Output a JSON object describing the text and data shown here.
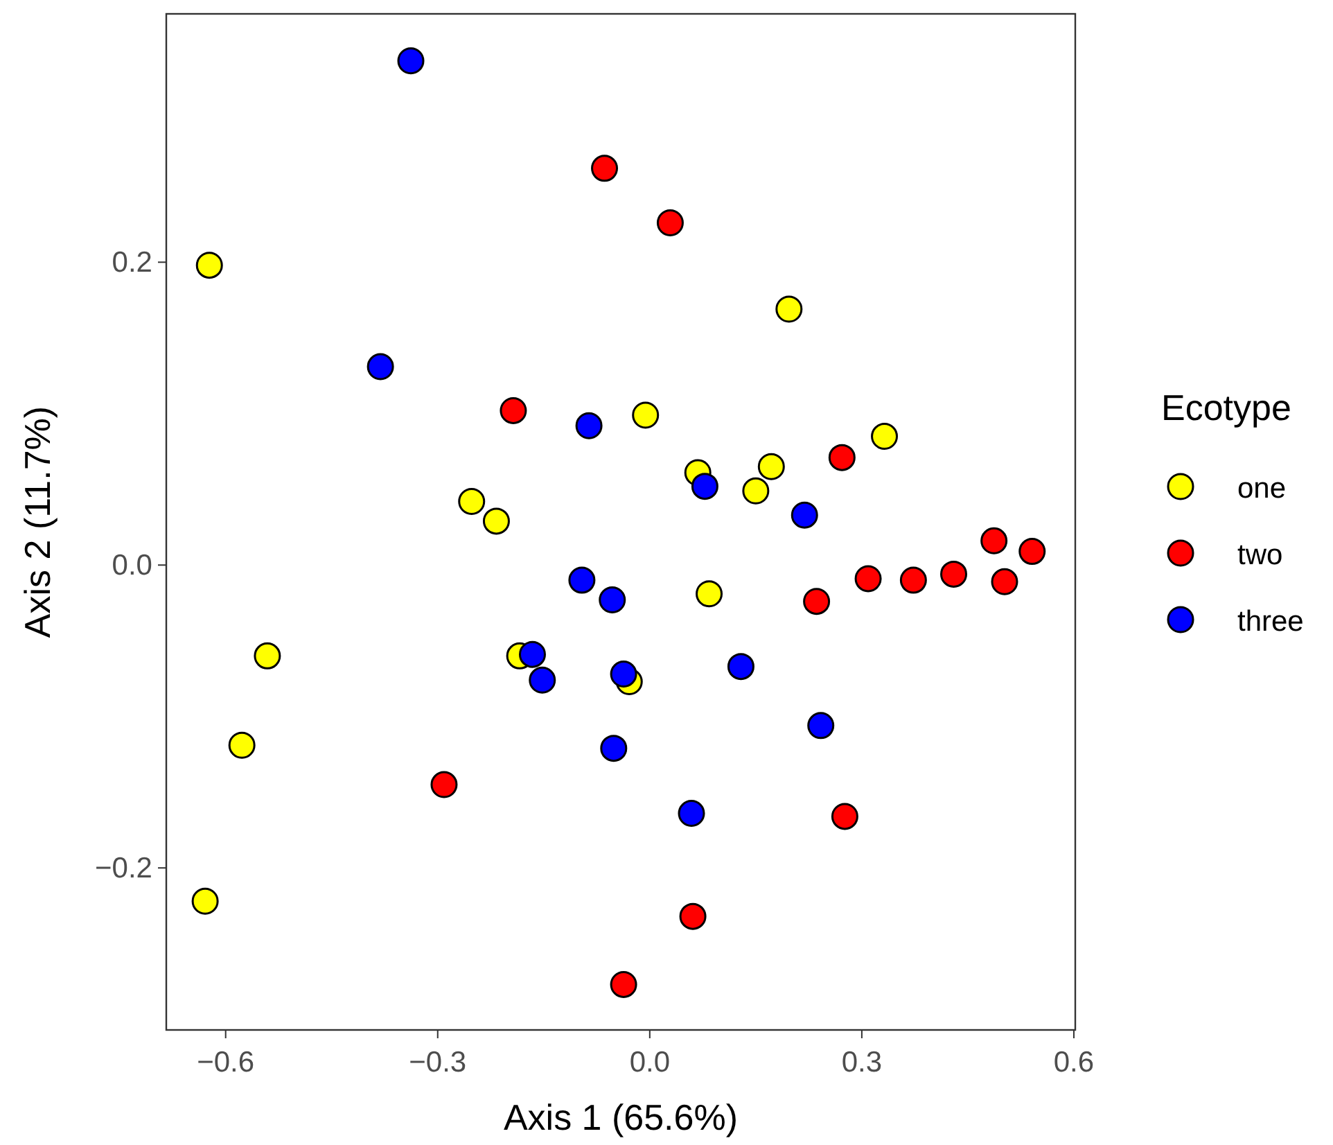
{
  "chart_data": {
    "type": "scatter",
    "xlabel": "Axis 1 (65.6%)",
    "ylabel": "Axis 2 (11.7%)",
    "legend_title": "Ecotype",
    "legend": "right",
    "grid": false,
    "marker": "circle",
    "xlim": [
      -0.684,
      0.602
    ],
    "ylim": [
      -0.307,
      0.364
    ],
    "xticks": [
      -0.6,
      -0.3,
      {
        "value": 0,
        "label": "0.0"
      },
      0.3,
      0.6
    ],
    "yticks": [
      -0.2,
      {
        "value": 0,
        "label": "0.0"
      },
      0.2
    ],
    "series": [
      {
        "name": "one",
        "color": "#ffff00",
        "x": [
          -0.623,
          0.197,
          -0.006,
          0.332,
          0.068,
          0.172,
          0.15,
          -0.252,
          -0.217,
          0.084,
          -0.541,
          -0.184,
          -0.029,
          -0.577,
          -0.629
        ],
        "values": [
          0.198,
          0.169,
          0.099,
          0.085,
          0.061,
          0.065,
          0.049,
          0.042,
          0.029,
          -0.019,
          -0.06,
          -0.06,
          -0.077,
          -0.119,
          -0.222
        ]
      },
      {
        "name": "two",
        "color": "#ff0000",
        "x": [
          -0.064,
          0.029,
          -0.193,
          0.272,
          0.487,
          0.541,
          0.502,
          0.43,
          0.373,
          0.309,
          0.236,
          -0.291,
          0.276,
          0.061,
          -0.037
        ],
        "values": [
          0.262,
          0.226,
          0.102,
          0.071,
          0.016,
          0.009,
          -0.011,
          -0.006,
          -0.01,
          -0.009,
          -0.024,
          -0.145,
          -0.166,
          -0.232,
          -0.277
        ]
      },
      {
        "name": "three",
        "color": "#0000ff",
        "x": [
          -0.338,
          -0.381,
          -0.086,
          0.078,
          0.219,
          -0.096,
          -0.053,
          -0.166,
          -0.152,
          -0.037,
          0.129,
          0.242,
          -0.051,
          0.059
        ],
        "values": [
          0.333,
          0.131,
          0.092,
          0.052,
          0.033,
          -0.01,
          -0.023,
          -0.059,
          -0.076,
          -0.072,
          -0.067,
          -0.106,
          -0.121,
          -0.164
        ]
      }
    ]
  }
}
